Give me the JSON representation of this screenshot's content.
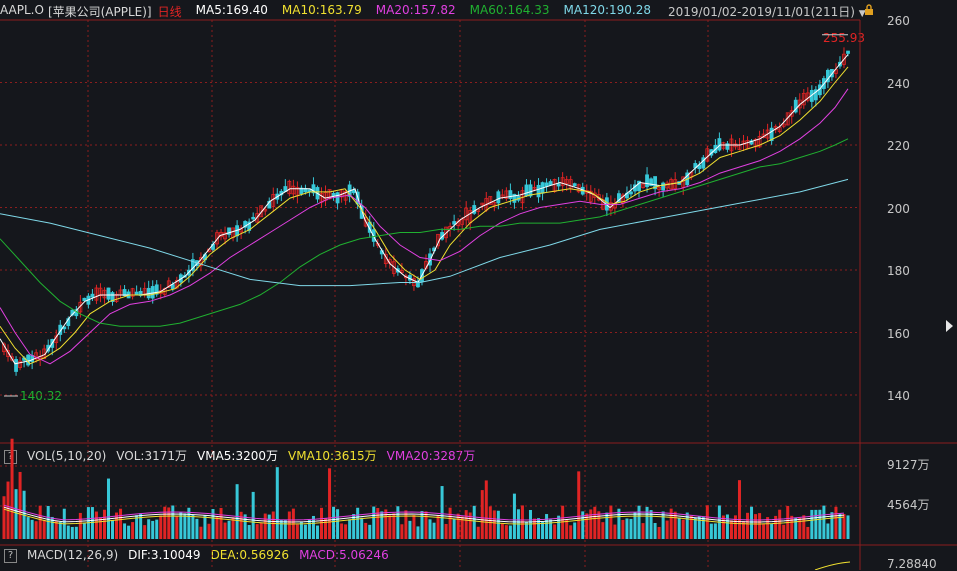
{
  "header": {
    "symbol": "AAPL.O",
    "name": "[苹果公司(APPLE)]",
    "period": "日线",
    "ma5": "MA5:169.40",
    "ma10": "MA10:163.79",
    "ma20": "MA20:157.82",
    "ma60": "MA60:164.33",
    "ma120": "MA120:190.28",
    "range": "2019/01/02-2019/11/01(211日)",
    "range_icon": "chevron-down-icon",
    "lock_icon": "lock-icon"
  },
  "price_axis": {
    "ticks": [
      "260",
      "240",
      "220",
      "200",
      "180",
      "160",
      "140"
    ]
  },
  "annotations": {
    "high": "255.93",
    "low": "140.32"
  },
  "volume_header": {
    "help": "?",
    "name": "VOL(5,10,20)",
    "vol": "VOL:3171万",
    "vma5": "VMA5:3200万",
    "vma10": "VMA10:3615万",
    "vma20": "VMA20:3287万"
  },
  "volume_axis": {
    "ticks": [
      "9127万",
      "4564万"
    ]
  },
  "macd_header": {
    "help": "?",
    "name": "MACD(12,26,9)",
    "dif": "DIF:3.10049",
    "dea": "DEA:0.56926",
    "macd": "MACD:5.06246"
  },
  "macd_axis": {
    "ticks": [
      "7.28840"
    ]
  },
  "colors": {
    "up": "#e02424",
    "down": "#37c8d8",
    "ma5": "#ffffff",
    "ma10": "#f0e030",
    "ma20": "#e040e0",
    "ma60": "#20b030",
    "ma120": "#7fd8e8",
    "grid": "#8a1e1e",
    "background": "#15171c"
  },
  "chart_data": {
    "type": "candlestick",
    "x_range": [
      "2019/01/02",
      "2019/11/01"
    ],
    "ylim": [
      130,
      262
    ],
    "yticks": [
      140,
      160,
      180,
      200,
      220,
      240,
      260
    ],
    "series": [
      {
        "name": "MA5",
        "points": [
          [
            0,
            158
          ],
          [
            15,
            150
          ],
          [
            30,
            151
          ],
          [
            45,
            153
          ],
          [
            55,
            158
          ],
          [
            70,
            165
          ],
          [
            85,
            170
          ],
          [
            100,
            172
          ],
          [
            120,
            172
          ],
          [
            140,
            172
          ],
          [
            160,
            173
          ],
          [
            185,
            178
          ],
          [
            200,
            183
          ],
          [
            220,
            191
          ],
          [
            240,
            193
          ],
          [
            255,
            196
          ],
          [
            270,
            202
          ],
          [
            290,
            206
          ],
          [
            310,
            206
          ],
          [
            325,
            203
          ],
          [
            340,
            204
          ],
          [
            355,
            206
          ],
          [
            365,
            196
          ],
          [
            375,
            190
          ],
          [
            390,
            182
          ],
          [
            405,
            178
          ],
          [
            418,
            176
          ],
          [
            430,
            183
          ],
          [
            440,
            190
          ],
          [
            460,
            196
          ],
          [
            480,
            200
          ],
          [
            500,
            203
          ],
          [
            520,
            204
          ],
          [
            540,
            206
          ],
          [
            560,
            208
          ],
          [
            580,
            206
          ],
          [
            595,
            204
          ],
          [
            610,
            200
          ],
          [
            625,
            204
          ],
          [
            640,
            208
          ],
          [
            660,
            207
          ],
          [
            680,
            208
          ],
          [
            700,
            214
          ],
          [
            720,
            220
          ],
          [
            740,
            220
          ],
          [
            760,
            222
          ],
          [
            780,
            226
          ],
          [
            800,
            233
          ],
          [
            820,
            238
          ],
          [
            835,
            244
          ],
          [
            848,
            249
          ]
        ]
      },
      {
        "name": "MA10",
        "points": [
          [
            0,
            162
          ],
          [
            15,
            155
          ],
          [
            30,
            150
          ],
          [
            45,
            152
          ],
          [
            60,
            155
          ],
          [
            75,
            160
          ],
          [
            90,
            166
          ],
          [
            110,
            170
          ],
          [
            130,
            172
          ],
          [
            150,
            172
          ],
          [
            175,
            174
          ],
          [
            190,
            178
          ],
          [
            210,
            185
          ],
          [
            230,
            190
          ],
          [
            250,
            193
          ],
          [
            270,
            198
          ],
          [
            290,
            203
          ],
          [
            310,
            205
          ],
          [
            330,
            205
          ],
          [
            345,
            206
          ],
          [
            360,
            200
          ],
          [
            375,
            193
          ],
          [
            390,
            185
          ],
          [
            405,
            180
          ],
          [
            420,
            177
          ],
          [
            435,
            180
          ],
          [
            450,
            188
          ],
          [
            470,
            195
          ],
          [
            490,
            200
          ],
          [
            510,
            202
          ],
          [
            530,
            204
          ],
          [
            550,
            205
          ],
          [
            570,
            206
          ],
          [
            590,
            205
          ],
          [
            610,
            201
          ],
          [
            625,
            202
          ],
          [
            640,
            205
          ],
          [
            660,
            207
          ],
          [
            680,
            208
          ],
          [
            700,
            211
          ],
          [
            720,
            216
          ],
          [
            740,
            218
          ],
          [
            760,
            220
          ],
          [
            780,
            223
          ],
          [
            800,
            228
          ],
          [
            820,
            234
          ],
          [
            835,
            240
          ],
          [
            848,
            245
          ]
        ]
      },
      {
        "name": "MA20",
        "points": [
          [
            0,
            168
          ],
          [
            15,
            160
          ],
          [
            30,
            153
          ],
          [
            50,
            150
          ],
          [
            70,
            154
          ],
          [
            90,
            160
          ],
          [
            110,
            166
          ],
          [
            130,
            169
          ],
          [
            150,
            170
          ],
          [
            170,
            172
          ],
          [
            190,
            175
          ],
          [
            210,
            179
          ],
          [
            230,
            184
          ],
          [
            250,
            188
          ],
          [
            270,
            192
          ],
          [
            290,
            196
          ],
          [
            310,
            200
          ],
          [
            330,
            203
          ],
          [
            350,
            204
          ],
          [
            365,
            200
          ],
          [
            380,
            194
          ],
          [
            400,
            188
          ],
          [
            420,
            184
          ],
          [
            440,
            183
          ],
          [
            460,
            186
          ],
          [
            480,
            191
          ],
          [
            500,
            195
          ],
          [
            520,
            198
          ],
          [
            540,
            200
          ],
          [
            560,
            201
          ],
          [
            580,
            202
          ],
          [
            600,
            201
          ],
          [
            620,
            201
          ],
          [
            640,
            203
          ],
          [
            660,
            205
          ],
          [
            680,
            206
          ],
          [
            700,
            208
          ],
          [
            720,
            211
          ],
          [
            740,
            213
          ],
          [
            760,
            215
          ],
          [
            780,
            218
          ],
          [
            800,
            222
          ],
          [
            820,
            227
          ],
          [
            835,
            232
          ],
          [
            848,
            238
          ]
        ]
      },
      {
        "name": "MA60",
        "points": [
          [
            0,
            190
          ],
          [
            20,
            183
          ],
          [
            40,
            176
          ],
          [
            60,
            170
          ],
          [
            80,
            166
          ],
          [
            100,
            163
          ],
          [
            120,
            162
          ],
          [
            140,
            162
          ],
          [
            160,
            162
          ],
          [
            180,
            163
          ],
          [
            200,
            165
          ],
          [
            220,
            167
          ],
          [
            240,
            169
          ],
          [
            260,
            172
          ],
          [
            280,
            176
          ],
          [
            300,
            181
          ],
          [
            320,
            185
          ],
          [
            340,
            188
          ],
          [
            360,
            190
          ],
          [
            380,
            191
          ],
          [
            400,
            192
          ],
          [
            420,
            192
          ],
          [
            440,
            193
          ],
          [
            460,
            193
          ],
          [
            480,
            194
          ],
          [
            500,
            194
          ],
          [
            520,
            195
          ],
          [
            540,
            195
          ],
          [
            560,
            195
          ],
          [
            580,
            196
          ],
          [
            600,
            197
          ],
          [
            620,
            199
          ],
          [
            640,
            201
          ],
          [
            660,
            203
          ],
          [
            680,
            205
          ],
          [
            700,
            207
          ],
          [
            720,
            209
          ],
          [
            740,
            211
          ],
          [
            760,
            213
          ],
          [
            780,
            214
          ],
          [
            800,
            216
          ],
          [
            820,
            218
          ],
          [
            835,
            220
          ],
          [
            848,
            222
          ]
        ]
      },
      {
        "name": "MA120",
        "points": [
          [
            0,
            198
          ],
          [
            50,
            195
          ],
          [
            100,
            191
          ],
          [
            150,
            187
          ],
          [
            200,
            182
          ],
          [
            250,
            177
          ],
          [
            300,
            175
          ],
          [
            350,
            175
          ],
          [
            400,
            176
          ],
          [
            420,
            176
          ],
          [
            450,
            178
          ],
          [
            500,
            184
          ],
          [
            550,
            188
          ],
          [
            600,
            193
          ],
          [
            650,
            196
          ],
          [
            700,
            199
          ],
          [
            750,
            202
          ],
          [
            800,
            205
          ],
          [
            848,
            209
          ]
        ]
      }
    ],
    "high": 255.93,
    "low": 140.32,
    "volume_ticks": [
      "9127万",
      "4564万"
    ],
    "macd_ticks": [
      "7.28840"
    ]
  }
}
